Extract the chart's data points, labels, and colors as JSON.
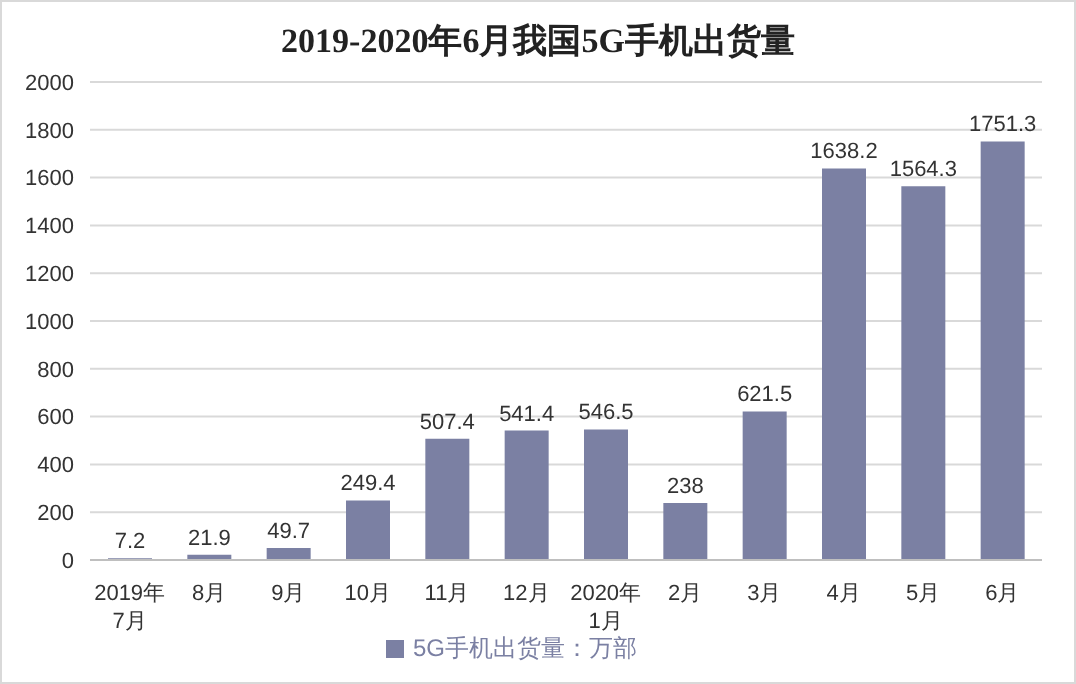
{
  "chart_data": {
    "type": "bar",
    "title": "2019-2020年6月我国5G手机出货量",
    "categories": [
      "2019年\n7月",
      "8月",
      "9月",
      "10月",
      "11月",
      "12月",
      "2020年\n1月",
      "2月",
      "3月",
      "4月",
      "5月",
      "6月"
    ],
    "series": [
      {
        "name": "5G手机出货量：万部",
        "color": "#7b80a3",
        "values": [
          7.2,
          21.9,
          49.7,
          249.4,
          507.4,
          541.4,
          546.5,
          238,
          621.5,
          1638.2,
          1564.3,
          1751.3
        ]
      }
    ],
    "ylim": [
      0,
      2000
    ],
    "yticks": [
      0,
      200,
      400,
      600,
      800,
      1000,
      1200,
      1400,
      1600,
      1800,
      2000
    ],
    "grid": "y",
    "legend": "bottom",
    "data_labels": true
  }
}
